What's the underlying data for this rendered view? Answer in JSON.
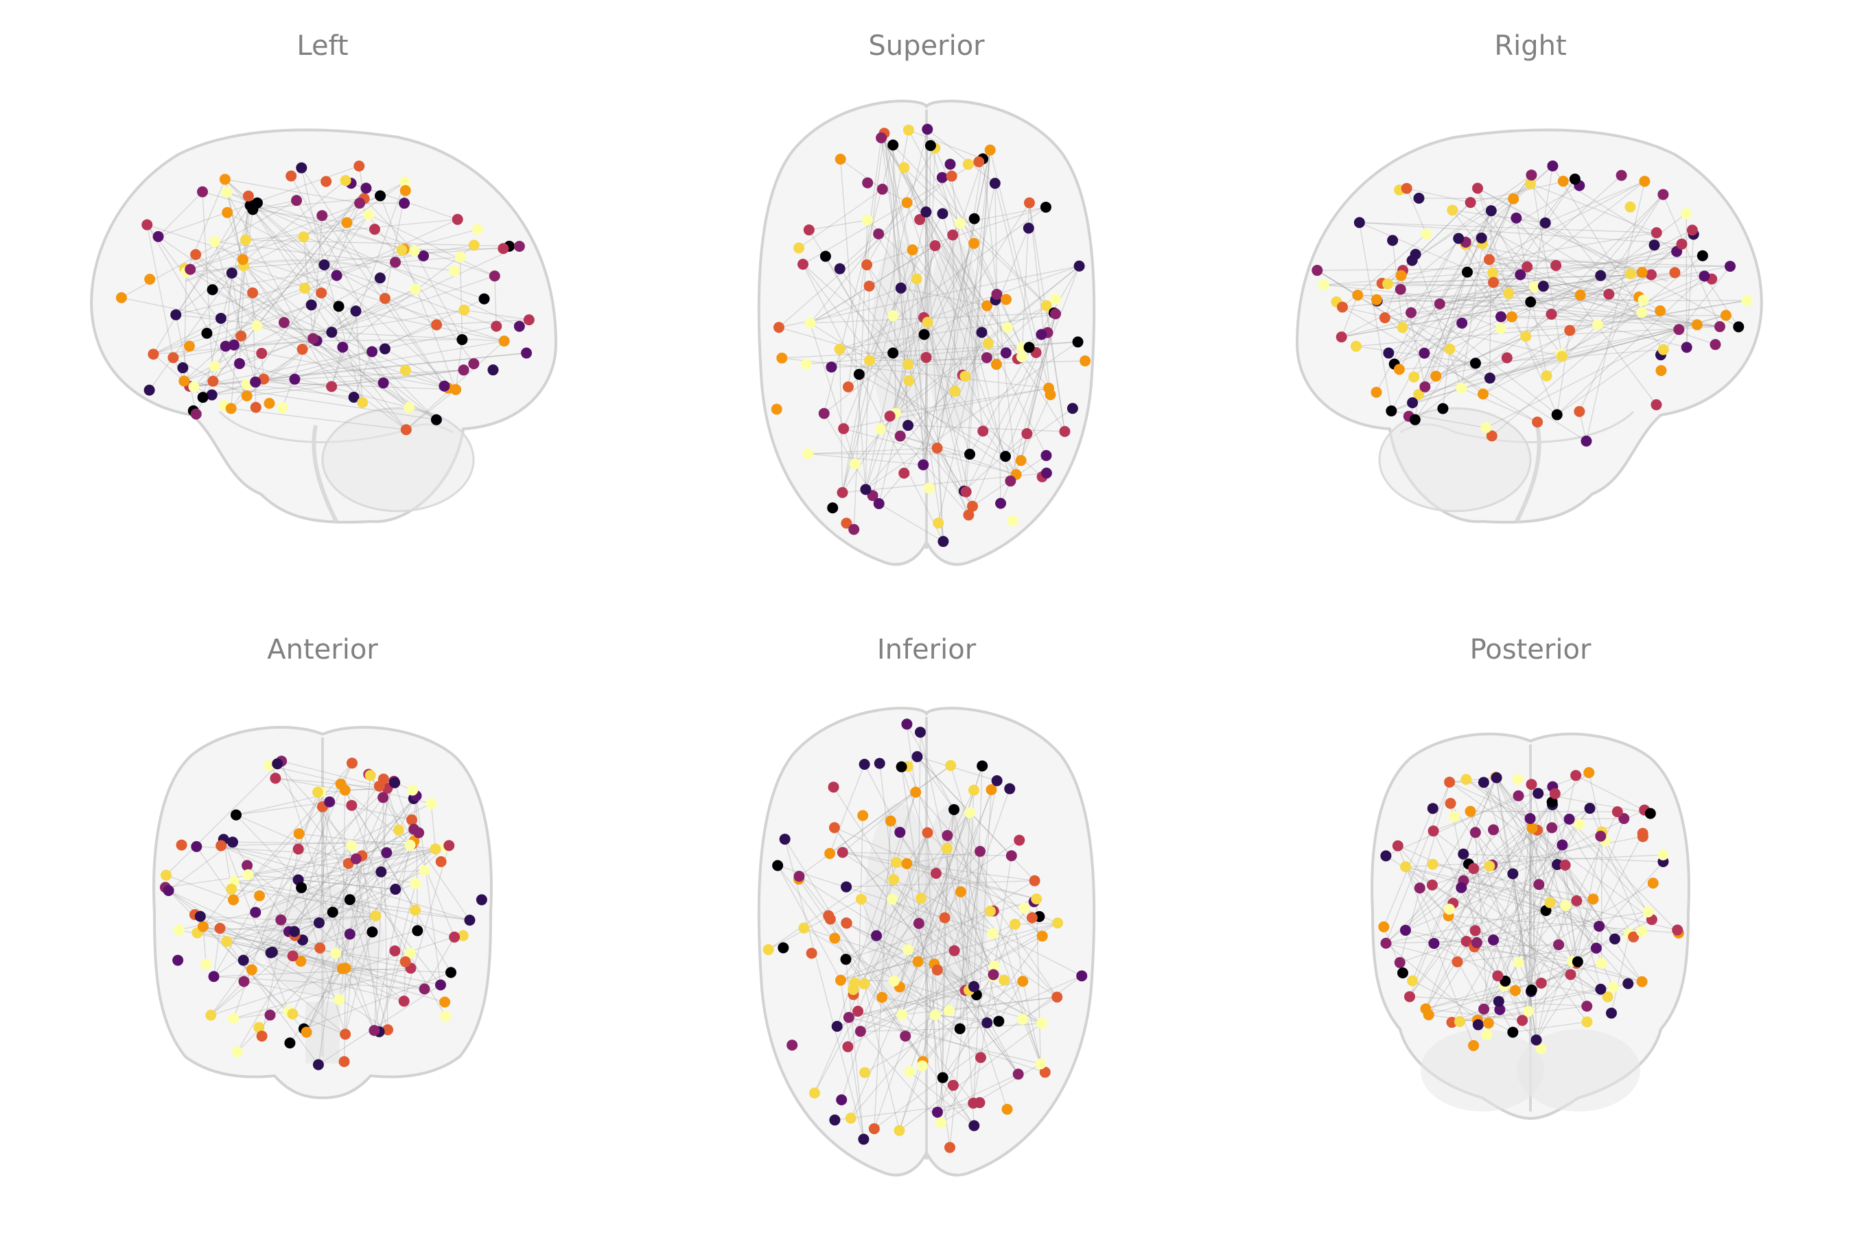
{
  "views": [
    {
      "key": "left",
      "title": "Left"
    },
    {
      "key": "superior",
      "title": "Superior"
    },
    {
      "key": "right",
      "title": "Right"
    },
    {
      "key": "anterior",
      "title": "Anterior"
    },
    {
      "key": "inferior",
      "title": "Inferior"
    },
    {
      "key": "posterior",
      "title": "Posterior"
    }
  ],
  "colors": {
    "node_palette": [
      "#000004",
      "#2d0f53",
      "#5a116e",
      "#8a226a",
      "#b93556",
      "#e15c30",
      "#f4950e",
      "#f6d746",
      "#fcffa4"
    ],
    "edge": "#9a9a9a",
    "brain_fill": "#efefef",
    "brain_outline": "#d2d2d2",
    "title": "#808080"
  }
}
